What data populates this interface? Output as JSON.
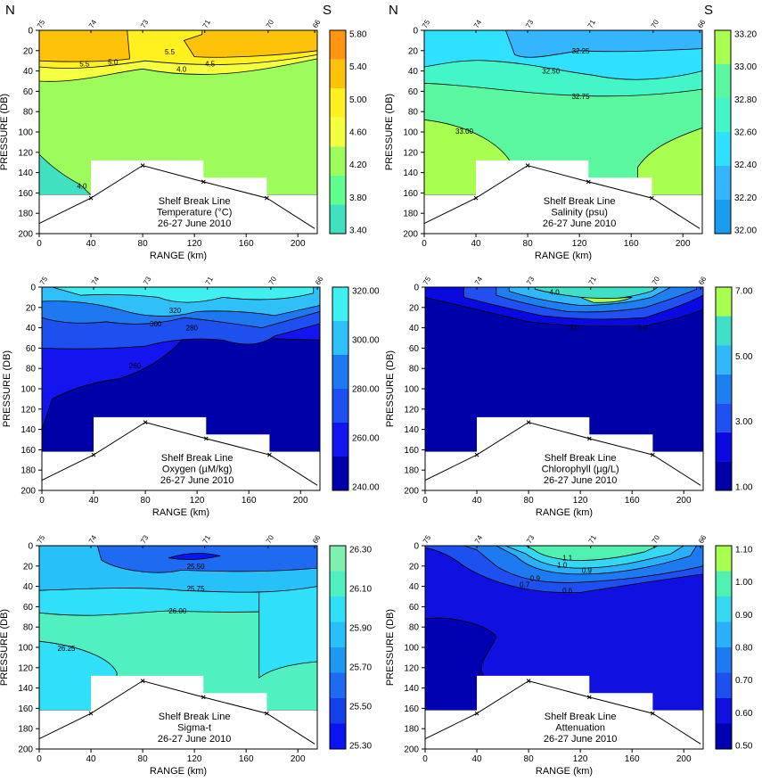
{
  "figure": {
    "north_label": "N",
    "south_label": "S"
  },
  "colors": {
    "T": [
      "#40e0c0",
      "#60ff90",
      "#9dfc5c",
      "#f5ff40",
      "#fff020",
      "#ffc20a",
      "#ff9512"
    ],
    "S": [
      "#1a9cf0",
      "#36b5ff",
      "#30e0ff",
      "#44f5c8",
      "#5af7a0",
      "#a8ff50"
    ],
    "O": [
      "#0000a8",
      "#1414ee",
      "#1e50f0",
      "#1e78f0",
      "#30c0f8",
      "#40f0f0"
    ],
    "C": [
      "#0000a8",
      "#0a0ae0",
      "#2050f0",
      "#1e80f0",
      "#30b8f8",
      "#40e0c8",
      "#a8ff50"
    ],
    "ST": [
      "#0a14f0",
      "#1440ea",
      "#1e6af0",
      "#1e98f0",
      "#28c0f8",
      "#30e0f8",
      "#50f0c0",
      "#80f0b0"
    ],
    "A": [
      "#0000b0",
      "#1010e0",
      "#1e50f0",
      "#1e7af0",
      "#2ab0f8",
      "#35d8f0",
      "#50f0b0",
      "#a8ff50"
    ]
  },
  "chart_data": [
    {
      "id": "temperature",
      "type": "contour",
      "title": "Shelf Break Line",
      "subtitle": "Temperature (°C)",
      "date": "26-27 June 2010",
      "xlabel": "RANGE (km)",
      "ylabel": "PRESSURE (DB)",
      "xlim": [
        0,
        215
      ],
      "ylim": [
        200,
        0
      ],
      "xticks": [
        "0",
        "40",
        "80",
        "120",
        "160",
        "200"
      ],
      "yticks": [
        "0",
        "20",
        "40",
        "60",
        "80",
        "100",
        "120",
        "140",
        "160",
        "180",
        "200"
      ],
      "station_labels": [
        {
          "x": 0,
          "label": "75"
        },
        {
          "x": 40,
          "label": "74"
        },
        {
          "x": 80,
          "label": "73"
        },
        {
          "x": 128,
          "label": "71"
        },
        {
          "x": 177,
          "label": "70"
        },
        {
          "x": 213,
          "label": "66"
        }
      ],
      "colorbar": {
        "labels": [
          "3.40",
          "3.80",
          "4.20",
          "4.60",
          "5.00",
          "5.40",
          "5.80"
        ]
      },
      "contour_labels": [
        {
          "x": 35,
          "y": 33,
          "label": "5.5"
        },
        {
          "x": 57,
          "y": 31,
          "label": "5.0"
        },
        {
          "x": 101,
          "y": 21,
          "label": "5.5"
        },
        {
          "x": 110,
          "y": 38,
          "label": "4.0"
        },
        {
          "x": 132,
          "y": 33,
          "label": "4.5"
        },
        {
          "x": 33,
          "y": 153,
          "label": "4.0"
        }
      ]
    },
    {
      "id": "salinity",
      "type": "contour",
      "title": "Shelf Break Line",
      "subtitle": "Salinity (psu)",
      "date": "26-27 June 2010",
      "xlabel": "RANGE (km)",
      "ylabel": "PRESSURE (DB)",
      "xlim": [
        0,
        215
      ],
      "ylim": [
        200,
        0
      ],
      "xticks": [
        "0",
        "40",
        "80",
        "120",
        "160",
        "200"
      ],
      "yticks": [
        "0",
        "20",
        "40",
        "60",
        "80",
        "100",
        "120",
        "140",
        "160",
        "180",
        "200"
      ],
      "station_labels": [
        {
          "x": 0,
          "label": "75"
        },
        {
          "x": 40,
          "label": "74"
        },
        {
          "x": 80,
          "label": "73"
        },
        {
          "x": 128,
          "label": "71"
        },
        {
          "x": 177,
          "label": "70"
        },
        {
          "x": 213,
          "label": "66"
        }
      ],
      "colorbar": {
        "labels": [
          "32.00",
          "32.20",
          "32.40",
          "32.60",
          "32.80",
          "33.00",
          "33.20"
        ]
      },
      "contour_labels": [
        {
          "x": 121,
          "y": 20,
          "label": "32.25"
        },
        {
          "x": 98,
          "y": 40,
          "label": "32.50"
        },
        {
          "x": 121,
          "y": 65,
          "label": "32.75"
        },
        {
          "x": 31,
          "y": 99,
          "label": "33.00"
        }
      ]
    },
    {
      "id": "oxygen",
      "type": "contour",
      "title": "Shelf Break Line",
      "subtitle": "Oxygen (µM/kg)",
      "date": "26-27 June 2010",
      "xlabel": "RANGE (km)",
      "ylabel": "PRESSURE (DB)",
      "xlim": [
        0,
        215
      ],
      "ylim": [
        200,
        0
      ],
      "xticks": [
        "0",
        "40",
        "80",
        "120",
        "160",
        "200"
      ],
      "yticks": [
        "0",
        "20",
        "40",
        "60",
        "80",
        "100",
        "120",
        "140",
        "160",
        "180",
        "200"
      ],
      "station_labels": [
        {
          "x": 0,
          "label": "75"
        },
        {
          "x": 40,
          "label": "74"
        },
        {
          "x": 80,
          "label": "73"
        },
        {
          "x": 128,
          "label": "71"
        },
        {
          "x": 177,
          "label": "70"
        },
        {
          "x": 213,
          "label": "66"
        }
      ],
      "colorbar": {
        "labels": [
          "240.00",
          "260.00",
          "280.00",
          "300.00",
          "320.00"
        ]
      },
      "contour_labels": [
        {
          "x": 103,
          "y": 23,
          "label": "320"
        },
        {
          "x": 88,
          "y": 36,
          "label": "300"
        },
        {
          "x": 116,
          "y": 40,
          "label": "280"
        },
        {
          "x": 72,
          "y": 77,
          "label": "260"
        }
      ]
    },
    {
      "id": "chlorophyll",
      "type": "contour",
      "title": "Shelf Break Line",
      "subtitle": "Chlorophyll (µg/L)",
      "date": "26-27 June 2010",
      "xlabel": "RANGE (km)",
      "ylabel": "PRESSURE (DB)",
      "xlim": [
        0,
        215
      ],
      "ylim": [
        200,
        0
      ],
      "xticks": [
        "0",
        "40",
        "80",
        "120",
        "160",
        "200"
      ],
      "yticks": [
        "0",
        "20",
        "40",
        "60",
        "80",
        "100",
        "120",
        "140",
        "160",
        "180",
        "200"
      ],
      "station_labels": [
        {
          "x": 0,
          "label": "75"
        },
        {
          "x": 40,
          "label": "74"
        },
        {
          "x": 80,
          "label": "73"
        },
        {
          "x": 128,
          "label": "71"
        },
        {
          "x": 177,
          "label": "70"
        },
        {
          "x": 213,
          "label": "66"
        }
      ],
      "colorbar": {
        "labels": [
          "1.00",
          "3.00",
          "5.00",
          "7.00"
        ]
      },
      "contour_labels": [
        {
          "x": 100,
          "y": 5,
          "label": "4.0"
        },
        {
          "x": 168,
          "y": 40,
          "label": "2.0"
        },
        {
          "x": 115,
          "y": 40,
          "label": "3.0"
        }
      ]
    },
    {
      "id": "sigma_t",
      "type": "contour",
      "title": "Shelf Break Line",
      "subtitle": "Sigma-t",
      "date": "26-27 June 2010",
      "xlabel": "RANGE (km)",
      "ylabel": "PRESSURE (DB)",
      "xlim": [
        0,
        215
      ],
      "ylim": [
        200,
        0
      ],
      "xticks": [
        "0",
        "40",
        "80",
        "120",
        "160",
        "200"
      ],
      "yticks": [
        "0",
        "20",
        "40",
        "60",
        "80",
        "100",
        "120",
        "140",
        "160",
        "180",
        "200"
      ],
      "station_labels": [
        {
          "x": 0,
          "label": "75"
        },
        {
          "x": 40,
          "label": "74"
        },
        {
          "x": 80,
          "label": "73"
        },
        {
          "x": 128,
          "label": "71"
        },
        {
          "x": 177,
          "label": "70"
        },
        {
          "x": 213,
          "label": "66"
        }
      ],
      "colorbar": {
        "labels": [
          "25.30",
          "25.50",
          "25.70",
          "25.90",
          "26.10",
          "26.30"
        ]
      },
      "contour_labels": [
        {
          "x": 121,
          "y": 20,
          "label": "25.50"
        },
        {
          "x": 121,
          "y": 42,
          "label": "25.75"
        },
        {
          "x": 107,
          "y": 64,
          "label": "26.00"
        },
        {
          "x": 21,
          "y": 101,
          "label": "26.25"
        }
      ]
    },
    {
      "id": "attenuation",
      "type": "contour",
      "title": "Shelf Break Line",
      "subtitle": "Attenuation",
      "date": "26-27 June 2010",
      "xlabel": "RANGE (km)",
      "ylabel": "PRESSURE (DB)",
      "xlim": [
        0,
        215
      ],
      "ylim": [
        200,
        0
      ],
      "xticks": [
        "0",
        "40",
        "80",
        "120",
        "160",
        "200"
      ],
      "yticks": [
        "0",
        "20",
        "40",
        "60",
        "80",
        "100",
        "120",
        "140",
        "160",
        "180",
        "200"
      ],
      "station_labels": [
        {
          "x": 0,
          "label": "75"
        },
        {
          "x": 40,
          "label": "74"
        },
        {
          "x": 80,
          "label": "73"
        },
        {
          "x": 128,
          "label": "71"
        },
        {
          "x": 177,
          "label": "70"
        },
        {
          "x": 213,
          "label": "66"
        }
      ],
      "colorbar": {
        "labels": [
          "0.50",
          "0.60",
          "0.70",
          "0.80",
          "0.90",
          "1.00",
          "1.10"
        ]
      },
      "contour_labels": [
        {
          "x": 110,
          "y": 12,
          "label": "1.1"
        },
        {
          "x": 106,
          "y": 19,
          "label": "1.0"
        },
        {
          "x": 125,
          "y": 24,
          "label": "0.9"
        },
        {
          "x": 85,
          "y": 32,
          "label": "0.9"
        },
        {
          "x": 77,
          "y": 38,
          "label": "0.7"
        },
        {
          "x": 110,
          "y": 44,
          "label": "0.6"
        }
      ]
    }
  ]
}
